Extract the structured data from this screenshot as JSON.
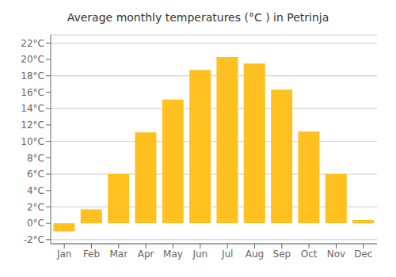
{
  "chart_data": {
    "type": "bar",
    "title": "Average monthly temperatures (°C ) in Petrinja",
    "categories": [
      "Jan",
      "Feb",
      "Mar",
      "Apr",
      "May",
      "Jun",
      "Jul",
      "Aug",
      "Sep",
      "Oct",
      "Nov",
      "Dec"
    ],
    "values": [
      -1.0,
      1.7,
      6.0,
      11.1,
      15.1,
      18.7,
      20.3,
      19.5,
      16.3,
      11.2,
      6.0,
      0.4
    ],
    "color": "#FFC020",
    "ylim": [
      -2.5,
      23
    ],
    "yticks": [
      {
        "value": -2,
        "label": "-2°C"
      },
      {
        "value": 0,
        "label": "0°C"
      },
      {
        "value": 2,
        "label": "2°C"
      },
      {
        "value": 4,
        "label": "4°C"
      },
      {
        "value": 6,
        "label": "6°C"
      },
      {
        "value": 8,
        "label": "8°C"
      },
      {
        "value": 10,
        "label": "10°C"
      },
      {
        "value": 12,
        "label": "12°C"
      },
      {
        "value": 14,
        "label": "14°C"
      },
      {
        "value": 16,
        "label": "16°C"
      },
      {
        "value": 18,
        "label": "18°C"
      },
      {
        "value": 20,
        "label": "20°C"
      },
      {
        "value": 22,
        "label": "22°C"
      }
    ],
    "grid": true
  }
}
